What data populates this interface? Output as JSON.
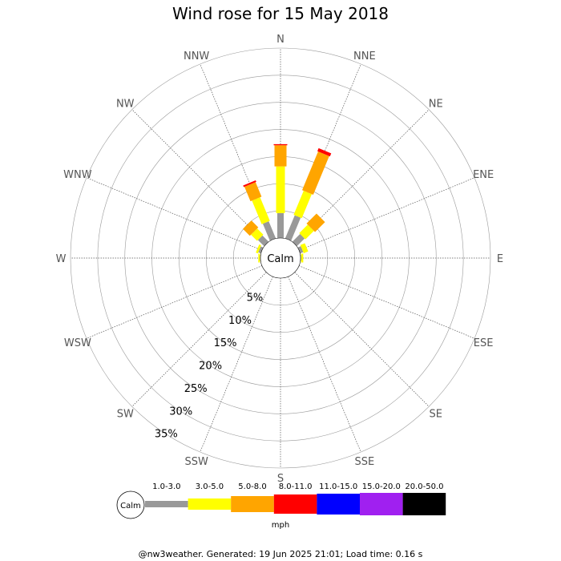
{
  "chart_data": {
    "type": "wind-rose",
    "title": "Wind rose for 15 May 2018",
    "directions": [
      "N",
      "NNE",
      "NE",
      "ENE",
      "E",
      "ESE",
      "SE",
      "SSE",
      "S",
      "SSW",
      "SW",
      "WSW",
      "W",
      "WNW",
      "NW",
      "NNW"
    ],
    "rings_percent": [
      5,
      10,
      15,
      20,
      25,
      30,
      35
    ],
    "ring_labels": [
      "5%",
      "10%",
      "15%",
      "20%",
      "25%",
      "30%",
      "35%"
    ],
    "r_max_percent": 35,
    "calm_label": "Calm",
    "speed_bins": [
      {
        "label": "1.0-3.0",
        "color": "#999999"
      },
      {
        "label": "3.0-5.0",
        "color": "#ffff00"
      },
      {
        "label": "5.0-8.0",
        "color": "#ffa500"
      },
      {
        "label": "8.0-11.0",
        "color": "#ff0000"
      },
      {
        "label": "11.0-15.0",
        "color": "#0000ff"
      },
      {
        "label": "15.0-20.0",
        "color": "#a020f0"
      },
      {
        "label": "20.0-50.0",
        "color": "#000000"
      }
    ],
    "units": "mph",
    "series": [
      {
        "direction": "N",
        "cumulative_percent": [
          4.6,
          13.2,
          17.1,
          17.3
        ]
      },
      {
        "direction": "NNE",
        "cumulative_percent": [
          4.6,
          9.4,
          17.1,
          17.7
        ]
      },
      {
        "direction": "NE",
        "cumulative_percent": [
          2.0,
          4.2,
          6.8
        ]
      },
      {
        "direction": "ENE",
        "cumulative_percent": [
          0.6,
          1.5
        ]
      },
      {
        "direction": "E",
        "cumulative_percent": [
          0.1,
          0.5
        ]
      },
      {
        "direction": "NNW",
        "cumulative_percent": [
          3.4,
          8.1,
          11.0,
          11.3
        ]
      },
      {
        "direction": "NW",
        "cumulative_percent": [
          1.6,
          3.2,
          5.0
        ]
      },
      {
        "direction": "WNW",
        "cumulative_percent": [
          0.5,
          0.9
        ]
      },
      {
        "direction": "W",
        "cumulative_percent": [
          0.1,
          0.4
        ]
      }
    ]
  },
  "footer": "@nw3weather. Generated: 19 Jun 2025 21:01; Load time: 0.16 s"
}
